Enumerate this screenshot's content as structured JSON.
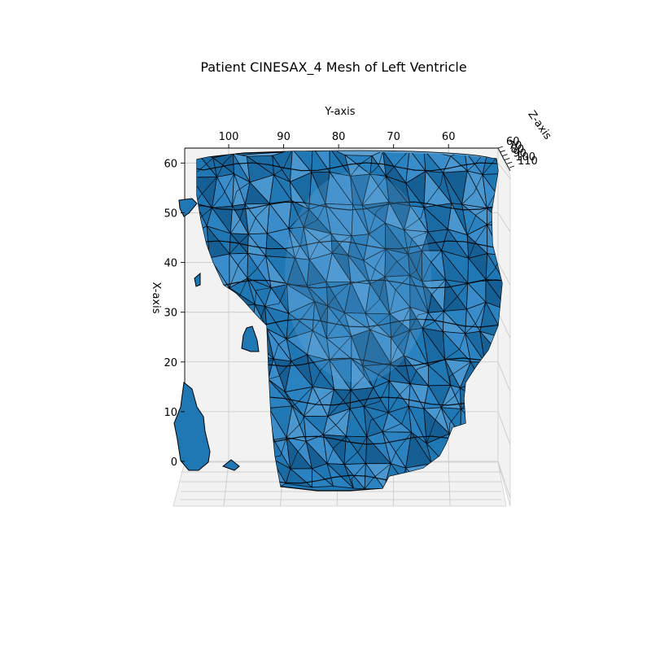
{
  "chart_data": {
    "type": "mesh3d",
    "title": "Patient CINESAX_4 Mesh of Left Ventricle",
    "xlabel": "X-axis",
    "ylabel": "Y-axis",
    "zlabel": "Z-axis",
    "x_ticks": [
      0,
      10,
      20,
      30,
      40,
      50,
      60
    ],
    "y_ticks": [
      100,
      90,
      80,
      70,
      60
    ],
    "z_ticks": [
      60,
      70,
      80,
      90,
      100,
      110
    ],
    "y_range": [
      108,
      51
    ],
    "x_range": [
      0,
      63
    ],
    "grid": true,
    "mesh_color": "#1f77b4",
    "edge_color": "#000000"
  }
}
